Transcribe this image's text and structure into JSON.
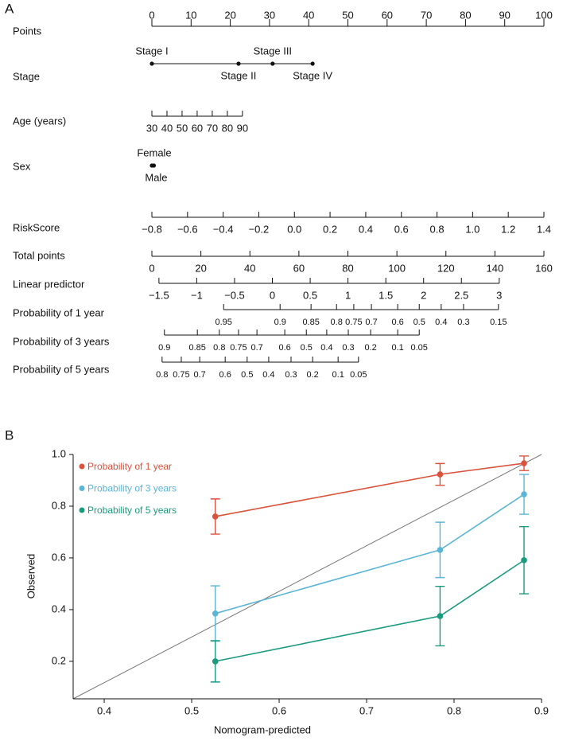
{
  "chart_data": [
    {
      "type": "nomogram",
      "label": "A",
      "rows": [
        {
          "label": "Points",
          "ticks": [
            0,
            10,
            20,
            30,
            40,
            50,
            60,
            70,
            80,
            90,
            100
          ],
          "at": [
            0,
            10,
            20,
            30,
            40,
            50,
            60,
            70,
            80,
            90,
            100
          ]
        },
        {
          "label": "Stage",
          "ticks": [
            "Stage I",
            "Stage II",
            "Stage III",
            "Stage IV"
          ],
          "at": [
            0,
            22.1,
            30.8,
            41
          ]
        },
        {
          "label": "Age (years)",
          "ticks": [
            30,
            40,
            50,
            60,
            70,
            80,
            90
          ],
          "at": [
            0,
            3.85,
            7.7,
            11.55,
            15.4,
            19.25,
            23.1
          ]
        },
        {
          "label": "Sex",
          "ticks": [
            "Female",
            "Male"
          ],
          "at": [
            0,
            0.5
          ]
        },
        {
          "label": "RiskScore",
          "ticks": [
            {
              "value": -0.8,
              "label": "−0.8"
            },
            {
              "value": -0.6,
              "label": "−0.6"
            },
            {
              "value": -0.4,
              "label": "−0.4"
            },
            {
              "value": -0.2,
              "label": "−0.2"
            },
            {
              "value": 0,
              "label": "0.0"
            },
            0.2,
            0.4,
            0.6,
            0.8,
            {
              "value": 1,
              "label": "1.0"
            },
            1.2,
            1.4
          ],
          "at": [
            0,
            9.09,
            18.18,
            27.27,
            36.36,
            45.45,
            54.55,
            63.64,
            72.73,
            81.82,
            90.91,
            100
          ]
        },
        {
          "label": "Total points",
          "ticks": [
            0,
            20,
            40,
            60,
            80,
            100,
            120,
            140,
            160
          ],
          "at": [
            0,
            12.5,
            25,
            37.5,
            50,
            62.5,
            75,
            87.5,
            100
          ]
        },
        {
          "label": "Linear predictor",
          "ticks": [
            {
              "value": -1.5,
              "label": "−1.5"
            },
            {
              "value": -1,
              "label": "−1"
            },
            {
              "value": -0.5,
              "label": "−0.5"
            },
            0,
            0.5,
            1,
            1.5,
            2,
            2.5,
            3
          ],
          "at": [
            1.8,
            11.44,
            21.09,
            30.73,
            40.38,
            50.02,
            59.67,
            69.31,
            78.96,
            88.6
          ]
        },
        {
          "label": "Probability of 1 year",
          "ticks": [
            0.95,
            0.9,
            0.85,
            0.8,
            0.75,
            0.7,
            0.6,
            0.5,
            0.4,
            0.3,
            0.15
          ],
          "at": [
            18.3,
            32.7,
            40.6,
            47.1,
            51.5,
            56.0,
            62.7,
            68.2,
            73.8,
            79.5,
            88.4
          ]
        },
        {
          "label": "Probability of 3 years",
          "ticks": [
            0.9,
            0.85,
            0.8,
            0.75,
            0.7,
            0.6,
            0.5,
            0.4,
            0.3,
            0.2,
            0.1,
            0.05
          ],
          "at": [
            3.2,
            11.6,
            17.2,
            22.1,
            26.8,
            33.9,
            39.4,
            44.6,
            50.1,
            55.8,
            62.7,
            68.2
          ]
        },
        {
          "label": "Probability of 5 years",
          "ticks": [
            0.8,
            0.75,
            0.7,
            0.6,
            0.5,
            0.4,
            0.3,
            0.2,
            0.1,
            0.05
          ],
          "at": [
            2.6,
            7.5,
            12.2,
            18.7,
            24.3,
            29.8,
            35.5,
            41.0,
            47.5,
            52.7
          ]
        }
      ]
    },
    {
      "type": "line",
      "label": "B",
      "x_label": "Nomogram-predicted",
      "y_label": "Observed",
      "x": [
        0.527,
        0.784,
        0.88
      ],
      "series": [
        {
          "name": "Probability of 1 year",
          "color": "#d9533d",
          "values": [
            0.76,
            0.923,
            0.966
          ],
          "errors": [
            0.068,
            0.042,
            0.028
          ]
        },
        {
          "name": "Probability of 3 years",
          "color": "#5bb5d5",
          "values": [
            0.385,
            0.631,
            0.846
          ],
          "errors": [
            0.107,
            0.107,
            0.077
          ]
        },
        {
          "name": "Probability of 5 years",
          "color": "#1a9a7e",
          "values": [
            0.2,
            0.375,
            0.591
          ],
          "errors": [
            0.08,
            0.115,
            0.13
          ]
        }
      ],
      "xlim": [
        0.3645,
        0.9
      ],
      "ylim": [
        0.055,
        1.0
      ],
      "xticks": [
        0.4,
        0.5,
        0.6,
        0.7,
        0.8,
        0.9
      ],
      "yticks": [
        0.2,
        0.4,
        0.6,
        0.8,
        {
          "value": 1,
          "label": "1.0"
        }
      ],
      "legend": "upper left"
    }
  ]
}
